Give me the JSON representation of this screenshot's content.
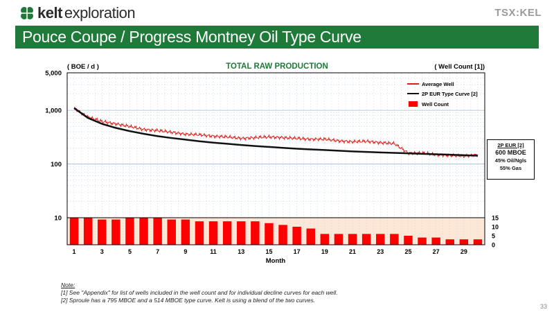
{
  "header": {
    "logo_word": "kelt",
    "logo_sub": "exploration",
    "exchange_logo": "TSX:KEL",
    "slide_title": "Pouce Coupe / Progress Montney Oil Type Curve"
  },
  "colors": {
    "brand_green": "#1f7a3a",
    "series_red": "#e0201c",
    "series_black": "#111111",
    "bars": "#ff0000"
  },
  "chart_data": {
    "type": "line",
    "title": "TOTAL RAW PRODUCTION",
    "ylabel_left": "( BOE / d )",
    "ylabel_right": "( Well Count [1])",
    "xlabel": "Month",
    "y_scale": "log",
    "ylim": [
      10,
      5000
    ],
    "y_ticks": [
      "5,000",
      "1,000",
      "100",
      "10"
    ],
    "y_right_ticks": [
      "15",
      "10",
      "5",
      "0"
    ],
    "y_right_lim": [
      0,
      15
    ],
    "x_ticks": [
      "1",
      "3",
      "5",
      "7",
      "9",
      "11",
      "13",
      "15",
      "17",
      "19",
      "21",
      "23",
      "25",
      "27",
      "29"
    ],
    "xlim": [
      0.5,
      30.5
    ],
    "grid": true,
    "legend_position": "top-right",
    "legend": [
      "Average Well",
      "2P EUR Type Curve [2]",
      "Well Count"
    ],
    "series": [
      {
        "name": "Average Well",
        "style": "line",
        "x": [
          1,
          2,
          3,
          4,
          5,
          6,
          7,
          8,
          9,
          10,
          11,
          12,
          13,
          14,
          15,
          16,
          17,
          18,
          19,
          20,
          21,
          22,
          23,
          24,
          25,
          26,
          27,
          28,
          29,
          30
        ],
        "values": [
          1100,
          750,
          620,
          560,
          500,
          440,
          420,
          390,
          360,
          350,
          330,
          320,
          300,
          310,
          320,
          310,
          300,
          290,
          290,
          270,
          260,
          265,
          250,
          240,
          160,
          160,
          150,
          145,
          140,
          150
        ]
      },
      {
        "name": "2P EUR Type Curve [2]",
        "style": "line",
        "x": [
          1,
          2,
          3,
          4,
          5,
          6,
          7,
          8,
          9,
          10,
          11,
          12,
          13,
          14,
          15,
          16,
          17,
          18,
          19,
          20,
          21,
          22,
          23,
          24,
          25,
          26,
          27,
          28,
          29,
          30
        ],
        "values": [
          1100,
          720,
          560,
          470,
          410,
          365,
          330,
          305,
          285,
          265,
          250,
          238,
          226,
          216,
          208,
          200,
          193,
          187,
          182,
          177,
          172,
          168,
          164,
          161,
          158,
          155,
          152,
          149,
          146,
          143
        ]
      },
      {
        "name": "Well Count",
        "style": "bar",
        "axis": "right",
        "x": [
          1,
          2,
          3,
          4,
          5,
          6,
          7,
          8,
          9,
          10,
          11,
          12,
          13,
          14,
          15,
          16,
          17,
          18,
          19,
          20,
          21,
          22,
          23,
          24,
          25,
          26,
          27,
          28,
          29,
          30
        ],
        "values": [
          15,
          15,
          14,
          14,
          15,
          15,
          15,
          14,
          14,
          13,
          13,
          13,
          13,
          13,
          12,
          11,
          10,
          9,
          6,
          6,
          6,
          6,
          6,
          6,
          5,
          4,
          4,
          3,
          3,
          3
        ]
      }
    ],
    "annotation": {
      "line1": "2P EUR [2]",
      "line2": "600 MBOE",
      "line3": "45% Oil/Ngls",
      "line4": "55% Gas"
    }
  },
  "footer": {
    "note_label": "Note:",
    "note1": "[1] See \"Appendix\" for list of wells included in the well count and for individual decline curves for each well.",
    "note2": "[2] Sproule has a 795 MBOE and a 514 MBOE type curve. Kelt is using a blend of the two curves.",
    "page_number": "33"
  }
}
